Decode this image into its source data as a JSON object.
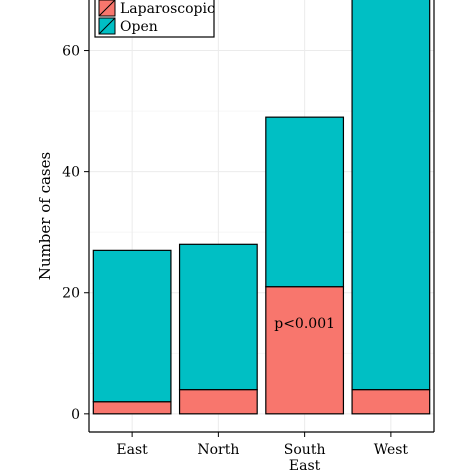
{
  "chart_data": {
    "type": "bar",
    "stacked": true,
    "categories": [
      "East",
      "North",
      "South\nEast",
      "West"
    ],
    "series": [
      {
        "name": "Laparoscopic",
        "color": "#f8766d",
        "values": [
          2,
          4,
          21,
          4
        ]
      },
      {
        "name": "Open",
        "color": "#00bfc4",
        "values": [
          25,
          24,
          28,
          65
        ]
      }
    ],
    "ylabel": "Number of cases",
    "xlabel": "",
    "ylim": [
      -3,
      70
    ],
    "yticks": [
      0,
      20,
      40,
      60
    ],
    "grid": true,
    "legend_position": "top-left",
    "annotations": [
      {
        "category": "South\nEast",
        "y": 15,
        "text": "p<0.001"
      }
    ]
  }
}
